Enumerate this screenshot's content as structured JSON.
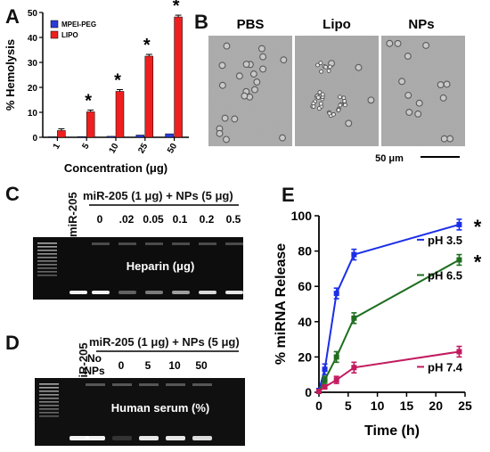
{
  "panels": {
    "A": "A",
    "B": "B",
    "C": "C",
    "D": "D",
    "E": "E"
  },
  "chart_data": [
    {
      "panel": "A",
      "type": "bar",
      "ylabel": "% Hemolysis",
      "xlabel": "Concentration (μg)",
      "ylim": [
        0,
        50
      ],
      "yticks": [
        0,
        10,
        20,
        30,
        40,
        50
      ],
      "categories": [
        "1",
        "5",
        "10",
        "25",
        "50"
      ],
      "series": [
        {
          "name": "MPEI-PEG",
          "color": "#2a3bd6",
          "values": [
            0.2,
            0.3,
            0.4,
            0.9,
            1.4
          ]
        },
        {
          "name": "LIPO",
          "color": "#ef1f1f",
          "values": [
            2.7,
            10.2,
            18.4,
            32.5,
            48.2
          ]
        }
      ],
      "significance": [
        "",
        "*",
        "*",
        "*",
        "*"
      ],
      "legend_position": "top-left"
    },
    {
      "panel": "E",
      "type": "line",
      "ylabel": "% miRNA Release",
      "xlabel": "Time (h)",
      "xlim": [
        0,
        25
      ],
      "ylim": [
        0,
        100
      ],
      "xticks": [
        0,
        5,
        10,
        15,
        20,
        25
      ],
      "yticks": [
        0,
        20,
        40,
        60,
        80,
        100
      ],
      "series": [
        {
          "name": "pH 3.5",
          "color": "#1b2ee8",
          "x": [
            0,
            1,
            3,
            6,
            24
          ],
          "y": [
            1,
            13,
            56,
            78,
            95
          ],
          "err": [
            1,
            3,
            3,
            3,
            3
          ],
          "significance": "*"
        },
        {
          "name": "pH 6.5",
          "color": "#1f6e1f",
          "x": [
            0,
            1,
            3,
            6,
            24
          ],
          "y": [
            0.5,
            7,
            20,
            42,
            75
          ],
          "err": [
            1,
            2,
            3,
            3,
            3
          ],
          "significance": "*"
        },
        {
          "name": "pH 7.4",
          "color": "#c21a5e",
          "x": [
            0,
            1,
            3,
            6,
            24
          ],
          "y": [
            0.5,
            3,
            7,
            14,
            23
          ],
          "err": [
            1,
            1,
            2,
            3,
            3
          ],
          "significance": ""
        }
      ]
    }
  ],
  "micro": {
    "labels": [
      "PBS",
      "Lipo",
      "NPs"
    ],
    "scale_bar": "50 μm"
  },
  "gelC": {
    "lane_label": "miR-205",
    "header": "miR-205 (1 μg) + NPs (5 μg)",
    "lanes": [
      "0",
      ".02",
      "0.05",
      "0.1",
      "0.2",
      "0.5"
    ],
    "overlay": "Heparin (μg)"
  },
  "gelD": {
    "lane_label": "miR-205",
    "header": "miR-205 (1 μg) + NPs (5 μg)",
    "lanes": [
      "No NPs",
      "0",
      "5",
      "10",
      "50"
    ],
    "overlay": "Human serum (%)"
  }
}
